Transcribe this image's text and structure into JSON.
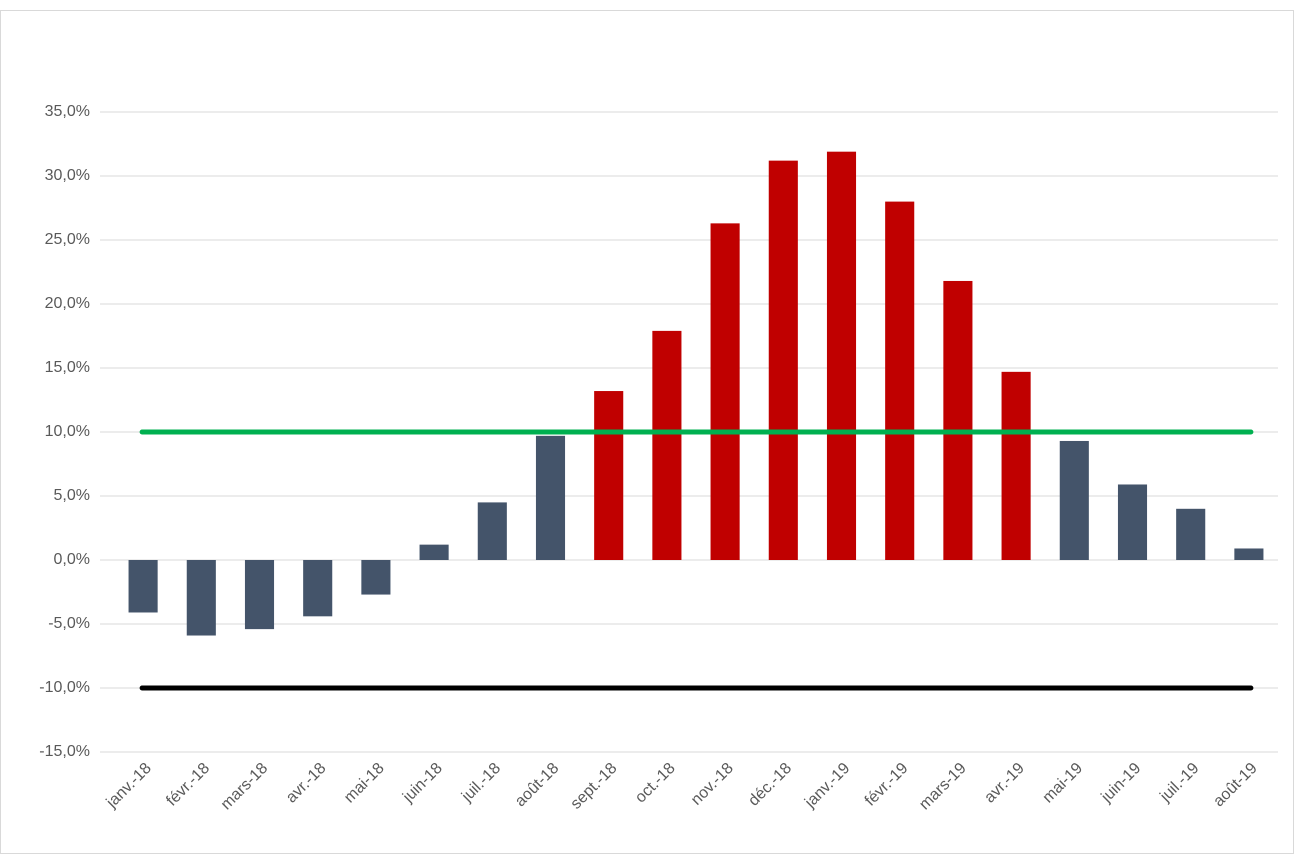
{
  "chart_data": {
    "type": "bar",
    "categories": [
      "janv.-18",
      "févr.-18",
      "mars-18",
      "avr.-18",
      "mai-18",
      "juin-18",
      "juil.-18",
      "août-18",
      "sept.-18",
      "oct.-18",
      "nov.-18",
      "déc.-18",
      "janv.-19",
      "févr.-19",
      "mars-19",
      "avr.-19",
      "mai-19",
      "juin-19",
      "juil.-19",
      "août-19"
    ],
    "values": [
      -4.1,
      -5.9,
      -5.4,
      -4.4,
      -2.7,
      1.2,
      4.5,
      9.7,
      13.2,
      17.9,
      26.3,
      31.2,
      31.9,
      28.0,
      21.8,
      14.7,
      9.3,
      5.9,
      4.0,
      0.9
    ],
    "colors": [
      "#44546a",
      "#44546a",
      "#44546a",
      "#44546a",
      "#44546a",
      "#44546a",
      "#44546a",
      "#44546a",
      "#c00000",
      "#c00000",
      "#c00000",
      "#c00000",
      "#c00000",
      "#c00000",
      "#c00000",
      "#c00000",
      "#44546a",
      "#44546a",
      "#44546a",
      "#44546a"
    ],
    "reference_lines": [
      {
        "value": 10,
        "color": "#00b050"
      },
      {
        "value": -10,
        "color": "#000000"
      }
    ],
    "ylim": [
      -15,
      35
    ],
    "yticks": [
      {
        "value": -15,
        "label": "-15,0%"
      },
      {
        "value": -10,
        "label": "-10,0%"
      },
      {
        "value": -5,
        "label": "-5,0%"
      },
      {
        "value": 0,
        "label": "0,0%"
      },
      {
        "value": 5,
        "label": "5,0%"
      },
      {
        "value": 10,
        "label": "10,0%"
      },
      {
        "value": 15,
        "label": "15,0%"
      },
      {
        "value": 20,
        "label": "20,0%"
      },
      {
        "value": 25,
        "label": "25,0%"
      },
      {
        "value": 30,
        "label": "30,0%"
      },
      {
        "value": 35,
        "label": "35,0%"
      }
    ],
    "grid": true
  }
}
